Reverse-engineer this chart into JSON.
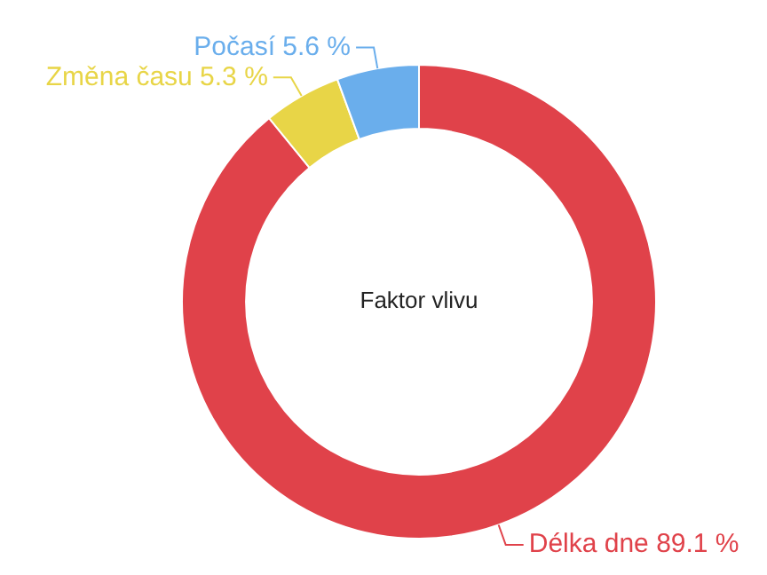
{
  "chart_data": {
    "type": "donut",
    "title": "Faktor vlivu",
    "categories": [
      "Délka dne",
      "Změna času",
      "Počasí"
    ],
    "values": [
      89.1,
      5.3,
      5.6
    ],
    "value_labels": [
      "89.1 %",
      "5.3 %",
      "5.6 %"
    ],
    "colors": [
      "#e0424a",
      "#e8d547",
      "#6aaeec"
    ],
    "legend": false
  }
}
